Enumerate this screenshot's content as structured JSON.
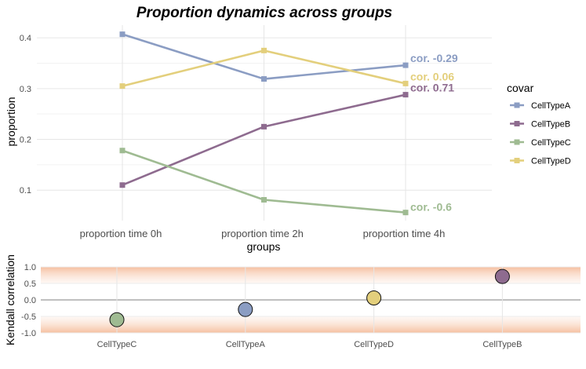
{
  "chart_data": [
    {
      "type": "line",
      "title": "Proportion dynamics across groups",
      "xlabel": "groups",
      "ylabel": "proportion",
      "categories": [
        "proportion time 0h",
        "proportion time 2h",
        "proportion time 4h"
      ],
      "y_ticks": [
        "0.1",
        "0.2",
        "0.3",
        "0.4"
      ],
      "ylim": [
        0.04,
        0.425
      ],
      "grid": true,
      "legend_title": "covar",
      "legend_position": "right",
      "series": [
        {
          "name": "CellTypeA",
          "color": "#8b9dc3",
          "values": [
            0.407,
            0.319,
            0.346
          ],
          "cor_label": "cor. -0.29"
        },
        {
          "name": "CellTypeB",
          "color": "#8e6b8f",
          "values": [
            0.11,
            0.225,
            0.288
          ],
          "cor_label": "cor. 0.71"
        },
        {
          "name": "CellTypeC",
          "color": "#9fbb92",
          "values": [
            0.178,
            0.081,
            0.056
          ],
          "cor_label": "cor. -0.6"
        },
        {
          "name": "CellTypeD",
          "color": "#e3cf7c",
          "values": [
            0.305,
            0.375,
            0.31
          ],
          "cor_label": "cor. 0.06"
        }
      ]
    },
    {
      "type": "scatter",
      "ylabel": "Kendall correlation",
      "categories": [
        "CellTypeC",
        "CellTypeA",
        "CellTypeD",
        "CellTypeB"
      ],
      "values": [
        -0.6,
        -0.29,
        0.06,
        0.71
      ],
      "colors": [
        "#9fbb92",
        "#8b9dc3",
        "#e3cf7c",
        "#8e6b8f"
      ],
      "y_ticks": [
        "-1.0",
        "-0.5",
        "0.0",
        "0.5",
        "1.0"
      ],
      "ylim": [
        -1.0,
        1.0
      ],
      "grid": true
    }
  ]
}
